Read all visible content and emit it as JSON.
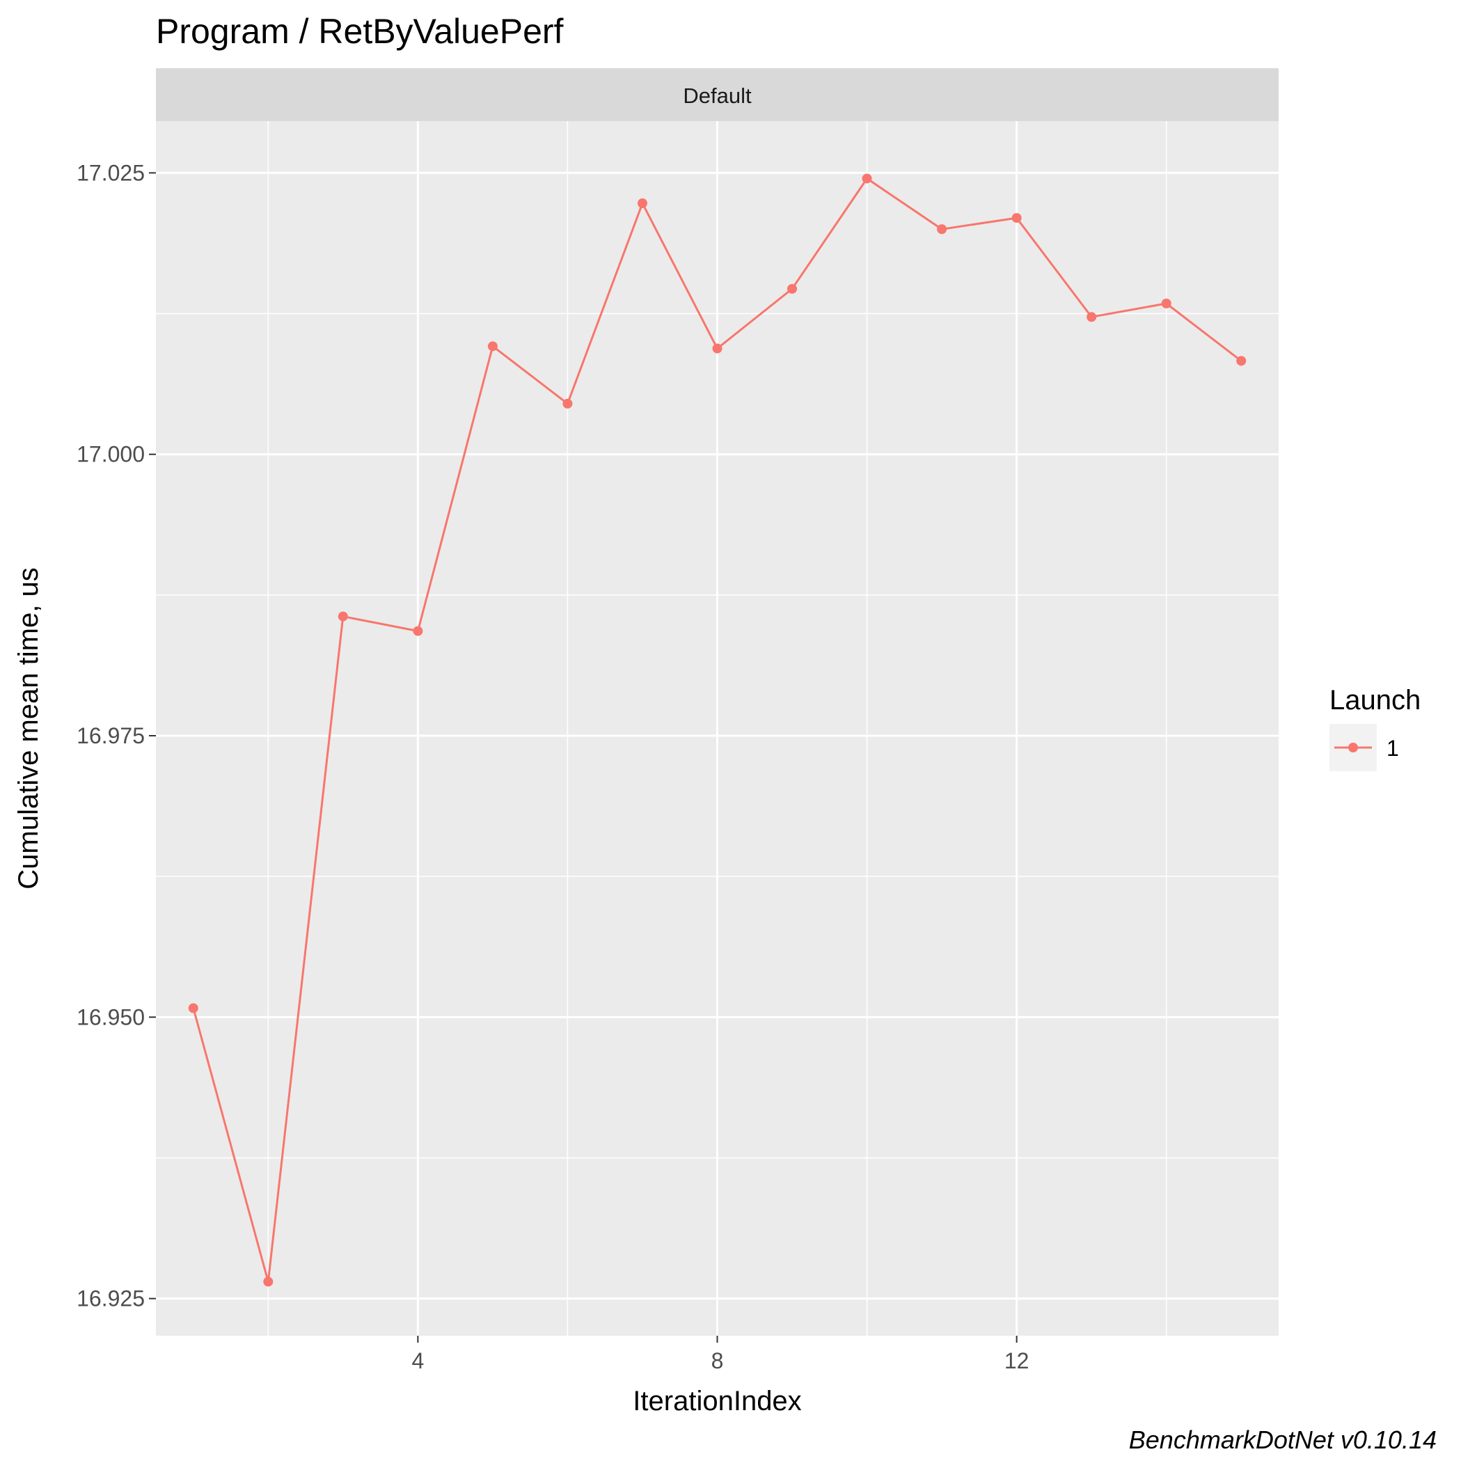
{
  "chart_data": {
    "type": "line",
    "title": "Program / RetByValuePerf",
    "facet_label": "Default",
    "xlabel": "IterationIndex",
    "ylabel": "Cumulative mean time, us",
    "xlim": [
      0.5,
      15.5
    ],
    "ylim": [
      16.9217,
      17.0296
    ],
    "x_ticks": [
      4,
      8,
      12
    ],
    "x_tick_labels": [
      "4",
      "8",
      "12"
    ],
    "y_ticks": [
      16.925,
      16.95,
      16.975,
      17.0,
      17.025
    ],
    "y_tick_labels": [
      "16.925",
      "16.950",
      "16.975",
      "17.000",
      "17.025"
    ],
    "grid": true,
    "legend": {
      "title": "Launch",
      "position": "right",
      "entries": [
        "1"
      ]
    },
    "series": [
      {
        "name": "1",
        "color": "#F8766D",
        "x": [
          1,
          2,
          3,
          4,
          5,
          6,
          7,
          8,
          9,
          10,
          11,
          12,
          13,
          14,
          15
        ],
        "values": [
          16.9508,
          16.9265,
          16.9856,
          16.9843,
          17.0096,
          17.0045,
          17.0223,
          17.0094,
          17.0147,
          17.0245,
          17.02,
          17.021,
          17.0122,
          17.0134,
          17.0083
        ]
      }
    ],
    "caption": "BenchmarkDotNet v0.10.14"
  }
}
